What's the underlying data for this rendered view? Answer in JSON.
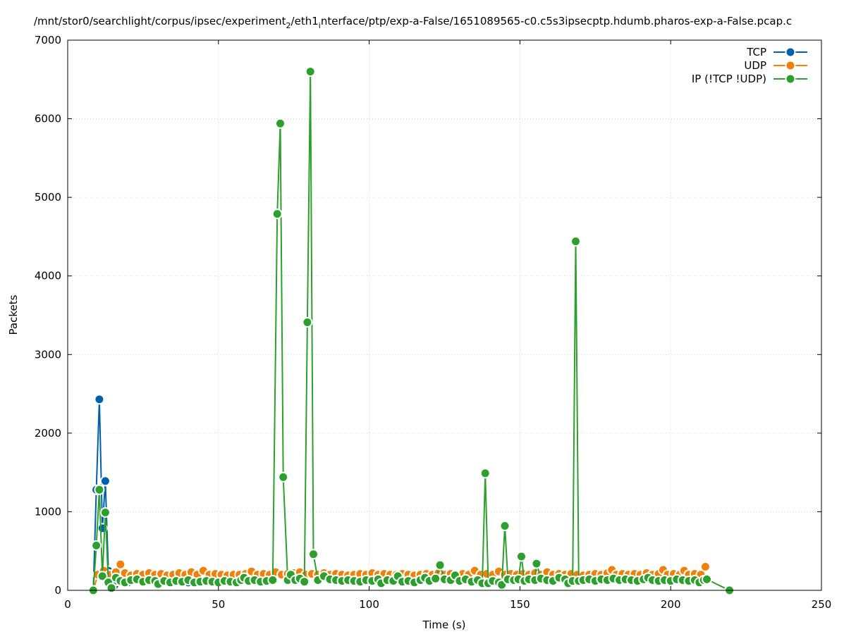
{
  "chart_data": {
    "type": "line",
    "title_parts": [
      "/mnt/stor0/searchlight/corpus/ipsec/experiment",
      "2",
      "/eth1",
      "i",
      "nterface/ptp/exp-a-False/1651089565-c0.c5s3ipsecptp.hdumb.pharos-exp-a-False.pcap.c"
    ],
    "xlabel": "Time (s)",
    "ylabel": "Packets",
    "xlim": [
      0,
      250
    ],
    "ylim": [
      0,
      7000
    ],
    "xticks": [
      0,
      50,
      100,
      150,
      200,
      250
    ],
    "yticks": [
      0,
      1000,
      2000,
      3000,
      4000,
      5000,
      6000,
      7000
    ],
    "grid": true,
    "legend_position": "top-right",
    "series": [
      {
        "name": "TCP",
        "color": "#0060ad",
        "points": [
          [
            8.5,
            0
          ],
          [
            9.5,
            1280
          ],
          [
            10.5,
            2430
          ],
          [
            11.5,
            790
          ],
          [
            12.5,
            1390
          ],
          [
            13.5,
            250
          ],
          [
            14.5,
            120
          ],
          [
            15.5,
            60
          ],
          [
            16.5,
            120
          ],
          [
            18,
            110
          ],
          [
            20,
            100
          ],
          [
            25,
            110
          ],
          [
            30,
            100
          ],
          [
            35,
            110
          ],
          [
            40,
            100
          ],
          [
            45,
            110
          ],
          [
            50,
            100
          ],
          [
            55,
            100
          ]
        ]
      },
      {
        "name": "UDP",
        "color": "#f0800a",
        "points": [
          [
            8.5,
            0
          ],
          [
            10,
            200
          ],
          [
            12,
            250
          ],
          [
            14,
            200
          ],
          [
            16,
            230
          ],
          [
            17.5,
            330
          ],
          [
            19,
            220
          ],
          [
            21,
            190
          ],
          [
            23,
            210
          ],
          [
            25,
            200
          ],
          [
            27,
            220
          ],
          [
            29,
            200
          ],
          [
            31,
            210
          ],
          [
            33,
            190
          ],
          [
            35,
            200
          ],
          [
            37,
            220
          ],
          [
            39,
            200
          ],
          [
            41,
            230
          ],
          [
            43,
            200
          ],
          [
            45,
            250
          ],
          [
            47,
            200
          ],
          [
            49,
            210
          ],
          [
            51,
            200
          ],
          [
            53,
            190
          ],
          [
            55,
            200
          ],
          [
            57,
            200
          ],
          [
            59,
            210
          ],
          [
            61,
            240
          ],
          [
            63,
            200
          ],
          [
            65,
            210
          ],
          [
            67,
            200
          ],
          [
            69,
            230
          ],
          [
            71,
            200
          ],
          [
            73,
            210
          ],
          [
            75,
            220
          ],
          [
            77,
            230
          ],
          [
            79,
            200
          ],
          [
            81,
            210
          ],
          [
            83,
            200
          ],
          [
            85,
            220
          ],
          [
            87,
            200
          ],
          [
            89,
            210
          ],
          [
            91,
            200
          ],
          [
            93,
            190
          ],
          [
            95,
            200
          ],
          [
            97,
            210
          ],
          [
            99,
            200
          ],
          [
            101,
            220
          ],
          [
            103,
            200
          ],
          [
            105,
            210
          ],
          [
            107,
            200
          ],
          [
            109,
            200
          ],
          [
            111,
            210
          ],
          [
            113,
            200
          ],
          [
            115,
            190
          ],
          [
            117,
            200
          ],
          [
            119,
            210
          ],
          [
            121,
            200
          ],
          [
            123,
            220
          ],
          [
            125,
            200
          ],
          [
            127,
            210
          ],
          [
            129,
            200
          ],
          [
            131,
            210
          ],
          [
            133,
            200
          ],
          [
            135,
            250
          ],
          [
            137,
            200
          ],
          [
            139,
            210
          ],
          [
            141,
            200
          ],
          [
            143,
            240
          ],
          [
            145,
            200
          ],
          [
            147,
            210
          ],
          [
            149,
            200
          ],
          [
            151,
            210
          ],
          [
            153,
            200
          ],
          [
            155,
            220
          ],
          [
            157,
            200
          ],
          [
            159,
            230
          ],
          [
            161,
            200
          ],
          [
            163,
            210
          ],
          [
            165,
            200
          ],
          [
            167,
            210
          ],
          [
            169,
            200
          ],
          [
            171,
            190
          ],
          [
            173,
            200
          ],
          [
            175,
            210
          ],
          [
            177,
            200
          ],
          [
            179,
            220
          ],
          [
            180.5,
            260
          ],
          [
            182,
            200
          ],
          [
            184,
            210
          ],
          [
            186,
            200
          ],
          [
            188,
            210
          ],
          [
            190,
            200
          ],
          [
            192,
            220
          ],
          [
            194,
            200
          ],
          [
            196,
            210
          ],
          [
            197.5,
            260
          ],
          [
            199,
            200
          ],
          [
            201,
            210
          ],
          [
            203,
            200
          ],
          [
            204.5,
            250
          ],
          [
            206,
            200
          ],
          [
            208,
            210
          ],
          [
            210,
            200
          ],
          [
            211.5,
            300
          ]
        ]
      },
      {
        "name": "IP (!TCP  !UDP)",
        "color": "#2ca02c",
        "points": [
          [
            8.5,
            0
          ],
          [
            9.5,
            570
          ],
          [
            10.5,
            1280
          ],
          [
            11.5,
            180
          ],
          [
            12.5,
            990
          ],
          [
            13.5,
            100
          ],
          [
            14.5,
            30
          ],
          [
            16,
            160
          ],
          [
            17.5,
            120
          ],
          [
            19,
            100
          ],
          [
            21,
            130
          ],
          [
            23,
            140
          ],
          [
            25,
            110
          ],
          [
            27,
            130
          ],
          [
            29,
            120
          ],
          [
            30,
            80
          ],
          [
            32,
            120
          ],
          [
            34,
            100
          ],
          [
            36,
            120
          ],
          [
            38,
            110
          ],
          [
            40,
            130
          ],
          [
            42,
            100
          ],
          [
            44,
            110
          ],
          [
            46,
            120
          ],
          [
            48,
            110
          ],
          [
            50,
            100
          ],
          [
            52,
            120
          ],
          [
            54,
            110
          ],
          [
            56,
            100
          ],
          [
            57.5,
            130
          ],
          [
            58.5,
            160
          ],
          [
            60,
            120
          ],
          [
            62,
            130
          ],
          [
            64,
            110
          ],
          [
            66,
            120
          ],
          [
            68,
            130
          ],
          [
            69.5,
            4790
          ],
          [
            70.5,
            5940
          ],
          [
            71.5,
            1440
          ],
          [
            73,
            130
          ],
          [
            74,
            200
          ],
          [
            75.5,
            130
          ],
          [
            77,
            150
          ],
          [
            78.5,
            110
          ],
          [
            79.5,
            3410
          ],
          [
            80.5,
            6600
          ],
          [
            81.5,
            460
          ],
          [
            83,
            130
          ],
          [
            85,
            180
          ],
          [
            87,
            140
          ],
          [
            89,
            130
          ],
          [
            91,
            120
          ],
          [
            93,
            130
          ],
          [
            95,
            120
          ],
          [
            97,
            110
          ],
          [
            99,
            130
          ],
          [
            101,
            120
          ],
          [
            103,
            140
          ],
          [
            104,
            90
          ],
          [
            106,
            130
          ],
          [
            108,
            120
          ],
          [
            109.5,
            180
          ],
          [
            111,
            110
          ],
          [
            113,
            120
          ],
          [
            115,
            100
          ],
          [
            117,
            130
          ],
          [
            118.5,
            160
          ],
          [
            120,
            120
          ],
          [
            122,
            150
          ],
          [
            123.5,
            320
          ],
          [
            125,
            140
          ],
          [
            127,
            130
          ],
          [
            128.5,
            190
          ],
          [
            130,
            120
          ],
          [
            132,
            140
          ],
          [
            134,
            110
          ],
          [
            136,
            130
          ],
          [
            137.5,
            90
          ],
          [
            138.5,
            1490
          ],
          [
            139.5,
            90
          ],
          [
            141,
            120
          ],
          [
            143,
            100
          ],
          [
            144,
            70
          ],
          [
            145,
            820
          ],
          [
            146,
            140
          ],
          [
            148,
            130
          ],
          [
            149.5,
            140
          ],
          [
            150.5,
            430
          ],
          [
            151.5,
            120
          ],
          [
            153,
            140
          ],
          [
            155,
            130
          ],
          [
            155.5,
            340
          ],
          [
            157,
            150
          ],
          [
            159,
            130
          ],
          [
            161,
            120
          ],
          [
            163,
            160
          ],
          [
            165,
            140
          ],
          [
            166,
            90
          ],
          [
            167.5,
            120
          ],
          [
            168.5,
            4440
          ],
          [
            169.5,
            120
          ],
          [
            171,
            130
          ],
          [
            173,
            140
          ],
          [
            175,
            120
          ],
          [
            177,
            140
          ],
          [
            179,
            130
          ],
          [
            181,
            150
          ],
          [
            183,
            130
          ],
          [
            185,
            140
          ],
          [
            187,
            130
          ],
          [
            189,
            120
          ],
          [
            191,
            140
          ],
          [
            192.5,
            160
          ],
          [
            194,
            130
          ],
          [
            196,
            120
          ],
          [
            198,
            130
          ],
          [
            200,
            120
          ],
          [
            202,
            140
          ],
          [
            204,
            130
          ],
          [
            206,
            120
          ],
          [
            208,
            130
          ],
          [
            209.5,
            100
          ],
          [
            211,
            130
          ],
          [
            212,
            140
          ],
          [
            219.5,
            0
          ]
        ]
      }
    ]
  }
}
